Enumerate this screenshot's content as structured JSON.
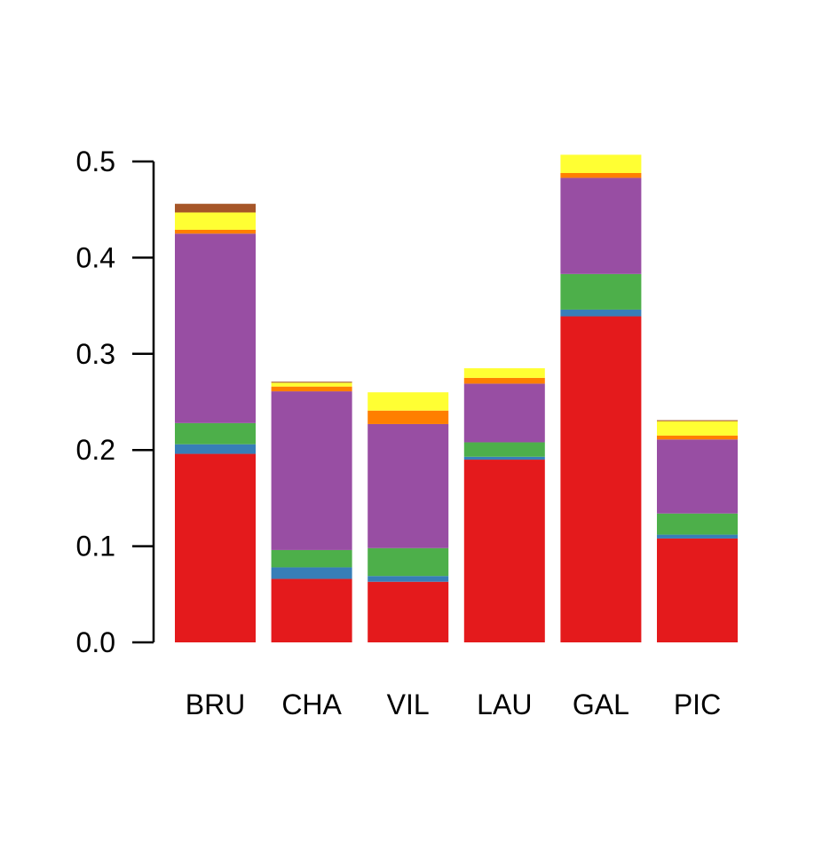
{
  "chart_data": {
    "type": "bar",
    "stacked": true,
    "title": "",
    "xlabel": "",
    "ylabel": "",
    "ylim": [
      0,
      0.5
    ],
    "yticks": [
      "0.0",
      "0.1",
      "0.2",
      "0.3",
      "0.4",
      "0.5"
    ],
    "categories": [
      "BRU",
      "CHA",
      "VIL",
      "LAU",
      "GAL",
      "PIC"
    ],
    "grid": false,
    "legend": "none",
    "series": [
      {
        "color": "#e41a1c",
        "values": [
          0.196,
          0.066,
          0.063,
          0.19,
          0.339,
          0.108
        ]
      },
      {
        "color": "#377eb8",
        "values": [
          0.01,
          0.012,
          0.006,
          0.003,
          0.007,
          0.004
        ]
      },
      {
        "color": "#4daf4a",
        "values": [
          0.022,
          0.018,
          0.029,
          0.015,
          0.037,
          0.022
        ]
      },
      {
        "color": "#984ea3",
        "values": [
          0.197,
          0.165,
          0.129,
          0.061,
          0.1,
          0.077
        ]
      },
      {
        "color": "#ff7f00",
        "values": [
          0.004,
          0.005,
          0.014,
          0.006,
          0.005,
          0.004
        ]
      },
      {
        "color": "#ffff33",
        "values": [
          0.018,
          0.004,
          0.019,
          0.01,
          0.019,
          0.015
        ]
      },
      {
        "color": "#a65628",
        "values": [
          0.009,
          0.001,
          0.0,
          0.0,
          0.0,
          0.001
        ]
      }
    ]
  }
}
